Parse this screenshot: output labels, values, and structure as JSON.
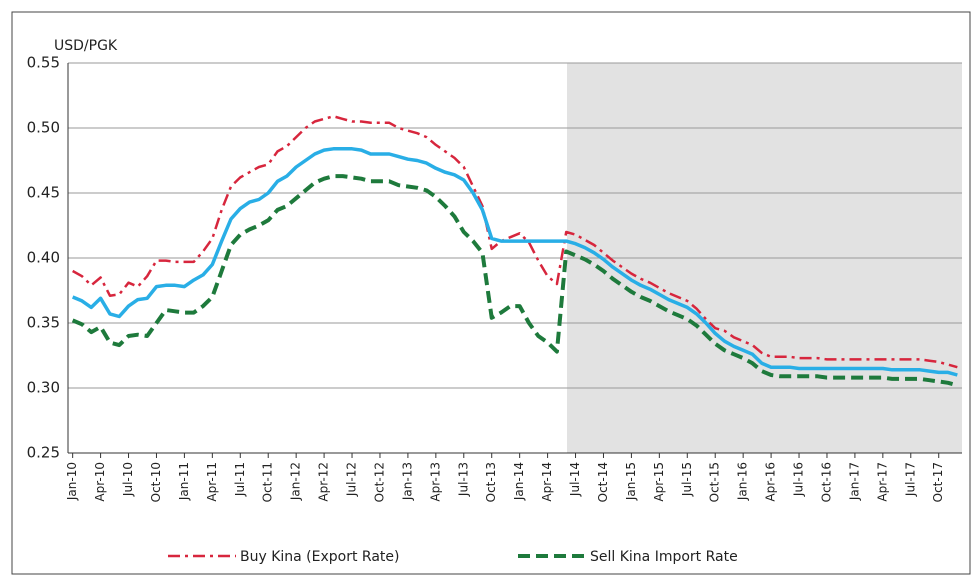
{
  "chart_data": {
    "type": "line",
    "y_axis_label": "USD/PGK",
    "categories": [
      "Jan-10",
      null,
      null,
      "Apr-10",
      null,
      null,
      "Jul-10",
      null,
      null,
      "Oct-10",
      null,
      null,
      "Jan-11",
      null,
      null,
      "Apr-11",
      null,
      null,
      "Jul-11",
      null,
      null,
      "Oct-11",
      null,
      null,
      "Jan-12",
      null,
      null,
      "Apr-12",
      null,
      null,
      "Jul-12",
      null,
      null,
      "Oct-12",
      null,
      null,
      "Jan-13",
      null,
      null,
      "Apr-13",
      null,
      null,
      "Jul-13",
      null,
      null,
      "Oct-13",
      null,
      null,
      "Jan-14",
      null,
      null,
      "Apr-14",
      null,
      null,
      "Jul-14",
      null,
      null,
      "Oct-14",
      null,
      null,
      "Jan-15",
      null,
      null,
      "Apr-15",
      null,
      null,
      "Jul-15",
      null,
      null,
      "Oct-15",
      null,
      null,
      "Jan-16",
      null,
      null,
      "Apr-16",
      null,
      null,
      "Jul-16",
      null,
      null,
      "Oct-16",
      null,
      null,
      "Jan-17",
      null,
      null,
      "Apr-17",
      null,
      null,
      "Jul-17",
      null,
      null,
      "Oct-17",
      null,
      null
    ],
    "series": [
      {
        "name": "Buy Kina (Export Rate)",
        "color": "#d7263d",
        "style": "dash-dot",
        "values": [
          0.39,
          0.386,
          0.379,
          0.385,
          0.371,
          0.372,
          0.381,
          0.378,
          0.386,
          0.398,
          0.398,
          0.397,
          0.397,
          0.397,
          0.405,
          0.415,
          0.437,
          0.455,
          0.462,
          0.466,
          0.47,
          0.472,
          0.482,
          0.486,
          0.493,
          0.5,
          0.505,
          0.507,
          0.509,
          0.507,
          0.505,
          0.505,
          0.504,
          0.504,
          0.504,
          0.5,
          0.498,
          0.496,
          0.493,
          0.487,
          0.482,
          0.477,
          0.47,
          0.455,
          0.44,
          0.407,
          0.413,
          0.416,
          0.419,
          0.412,
          0.398,
          0.386,
          0.38,
          0.42,
          0.418,
          0.414,
          0.41,
          0.404,
          0.398,
          0.393,
          0.388,
          0.384,
          0.381,
          0.377,
          0.373,
          0.37,
          0.367,
          0.361,
          0.353,
          0.346,
          0.344,
          0.339,
          0.336,
          0.333,
          0.327,
          0.324,
          0.324,
          0.324,
          0.323,
          0.323,
          0.323,
          0.322,
          0.322,
          0.322,
          0.322,
          0.322,
          0.322,
          0.322,
          0.322,
          0.322,
          0.322,
          0.322,
          0.321,
          0.32,
          0.318,
          0.316
        ]
      },
      {
        "color": "#29aee6",
        "style": "solid",
        "values": [
          0.37,
          0.367,
          0.362,
          0.369,
          0.357,
          0.355,
          0.363,
          0.368,
          0.369,
          0.378,
          0.379,
          0.379,
          0.378,
          0.383,
          0.387,
          0.395,
          0.413,
          0.43,
          0.438,
          0.443,
          0.445,
          0.45,
          0.459,
          0.463,
          0.47,
          0.475,
          0.48,
          0.483,
          0.484,
          0.484,
          0.484,
          0.483,
          0.48,
          0.48,
          0.48,
          0.478,
          0.476,
          0.475,
          0.473,
          0.469,
          0.466,
          0.464,
          0.46,
          0.45,
          0.437,
          0.415,
          0.413,
          0.413,
          0.413,
          0.413,
          0.413,
          0.413,
          0.413,
          0.413,
          0.411,
          0.408,
          0.404,
          0.399,
          0.393,
          0.388,
          0.383,
          0.379,
          0.376,
          0.372,
          0.368,
          0.365,
          0.362,
          0.357,
          0.35,
          0.342,
          0.336,
          0.332,
          0.329,
          0.326,
          0.319,
          0.316,
          0.316,
          0.316,
          0.315,
          0.315,
          0.315,
          0.315,
          0.315,
          0.315,
          0.315,
          0.315,
          0.315,
          0.315,
          0.314,
          0.314,
          0.314,
          0.314,
          0.313,
          0.312,
          0.312,
          0.31
        ]
      },
      {
        "name": "Sell Kina Import Rate",
        "color": "#1e7a3c",
        "style": "dashed",
        "values": [
          0.352,
          0.349,
          0.343,
          0.347,
          0.335,
          0.333,
          0.34,
          0.341,
          0.34,
          0.35,
          0.36,
          0.359,
          0.358,
          0.358,
          0.363,
          0.37,
          0.39,
          0.41,
          0.418,
          0.422,
          0.425,
          0.429,
          0.437,
          0.44,
          0.446,
          0.452,
          0.458,
          0.461,
          0.463,
          0.463,
          0.462,
          0.461,
          0.459,
          0.459,
          0.459,
          0.456,
          0.455,
          0.454,
          0.452,
          0.447,
          0.44,
          0.432,
          0.42,
          0.413,
          0.404,
          0.354,
          0.358,
          0.363,
          0.363,
          0.35,
          0.34,
          0.335,
          0.328,
          0.405,
          0.402,
          0.399,
          0.395,
          0.39,
          0.384,
          0.379,
          0.374,
          0.37,
          0.367,
          0.363,
          0.359,
          0.356,
          0.353,
          0.348,
          0.341,
          0.334,
          0.329,
          0.326,
          0.323,
          0.319,
          0.313,
          0.31,
          0.309,
          0.309,
          0.309,
          0.309,
          0.309,
          0.308,
          0.308,
          0.308,
          0.308,
          0.308,
          0.308,
          0.308,
          0.307,
          0.307,
          0.307,
          0.307,
          0.306,
          0.305,
          0.304,
          0.302
        ]
      }
    ],
    "ylim": [
      0.25,
      0.55
    ],
    "yticks": [
      0.25,
      {
        "value": 0.3,
        "label": "0.30"
      },
      0.35,
      {
        "value": 0.4,
        "label": "0.40"
      },
      0.45,
      {
        "value": 0.5,
        "label": "0.50"
      },
      0.55
    ],
    "grid": true,
    "legend": "bottom"
  }
}
